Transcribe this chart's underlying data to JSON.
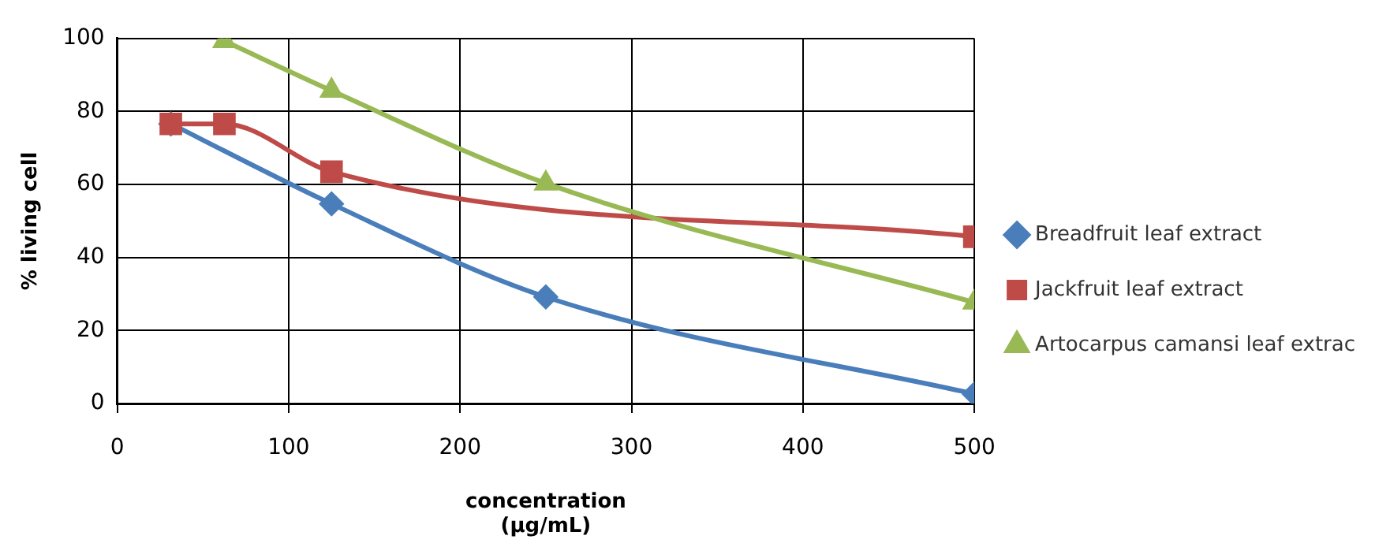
{
  "chart_data": {
    "type": "line",
    "xlabel": "concentration\n(µg/mL)",
    "ylabel": "% living cell",
    "xlim": [
      0,
      500
    ],
    "xticks": [
      0,
      100,
      200,
      300,
      400,
      500
    ],
    "ylim": [
      0,
      100
    ],
    "yticks": [
      0,
      20,
      40,
      60,
      80,
      100
    ],
    "grid": true,
    "legend": "right",
    "series": [
      {
        "name": "Breadfruit leaf extract",
        "color": "#4a7ebb",
        "marker": "diamond",
        "x": [
          31.25,
          125,
          250,
          500
        ],
        "values": [
          76.6,
          54.7,
          29.2,
          2.6
        ]
      },
      {
        "name": "Jackfruit leaf extract",
        "color": "#be4b48",
        "marker": "square",
        "x": [
          31.25,
          62.5,
          125,
          500
        ],
        "values": [
          76.6,
          76.6,
          63.5,
          45.7
        ]
      },
      {
        "name": "Artocarpus camansi leaf extrac",
        "color": "#98b954",
        "marker": "triangle",
        "x": [
          62.5,
          125,
          250,
          500
        ],
        "values": [
          99.3,
          85.7,
          60.3,
          27.7
        ]
      }
    ]
  }
}
